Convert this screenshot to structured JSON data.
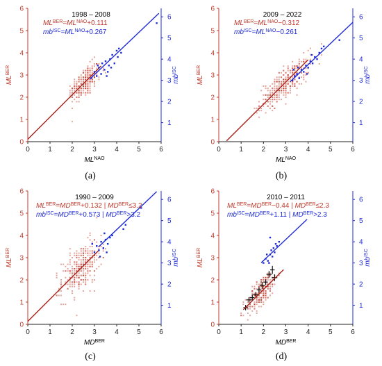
{
  "colors": {
    "ml": "#c0392b",
    "mb": "#1f2bd4",
    "axis": "#222222"
  },
  "chart_data": [
    {
      "panel": "(a)",
      "type": "scatter",
      "title": "1998 – 2008",
      "eq_red": {
        "lhs_base": "ML",
        "lhs_sup": "BER",
        "rhs_base": "=ML",
        "rhs_sup": "NAO",
        "tail": "+0.111"
      },
      "eq_blue": {
        "lhs_base": "mb",
        "lhs_sup": "ISC",
        "rhs_base": "=ML",
        "rhs_sup": "NAO",
        "tail": "+0.267"
      },
      "xlabel": {
        "base": "ML",
        "sup": "NAO"
      },
      "ylabel_left": {
        "base": "ML",
        "sup": "BER"
      },
      "ylabel_right": {
        "base": "mb",
        "sup": "ISC"
      },
      "xlim": [
        0,
        6
      ],
      "ylim_left": [
        0,
        6
      ],
      "ylim_right": [
        0.1,
        6.4
      ],
      "x_ticks": [
        "0",
        "1",
        "2",
        "3",
        "4",
        "5",
        "6"
      ],
      "left_ticks": [
        "0",
        "1",
        "2",
        "3",
        "4",
        "5",
        "6"
      ],
      "right_ticks": [
        "1",
        "2",
        "3",
        "4",
        "5",
        "6"
      ],
      "fit_red": {
        "slope": 1,
        "intercept": 0.111,
        "x": [
          0,
          3.3
        ]
      },
      "fit_blue": {
        "slope": 1,
        "intercept": 0.267,
        "x": [
          2.8,
          5.9
        ]
      },
      "red_cloud": {
        "cx": 2.55,
        "cy": 2.65,
        "sx": 0.35,
        "sy": 0.42,
        "rho": 0.6,
        "n": 260,
        "xmin": 1.9,
        "xmax": 3.6
      },
      "blue_points": [
        [
          2.85,
          3.1
        ],
        [
          3.0,
          3.4
        ],
        [
          3.1,
          3.2
        ],
        [
          3.2,
          3.6
        ],
        [
          3.3,
          3.3
        ],
        [
          3.35,
          3.8
        ],
        [
          3.45,
          3.5
        ],
        [
          3.5,
          3.9
        ],
        [
          3.6,
          3.4
        ],
        [
          3.65,
          3.7
        ],
        [
          3.7,
          4.0
        ],
        [
          3.75,
          3.6
        ],
        [
          3.8,
          4.2
        ],
        [
          3.9,
          3.8
        ],
        [
          4.0,
          4.4
        ],
        [
          4.05,
          4.1
        ],
        [
          4.1,
          4.5
        ],
        [
          4.2,
          4.3
        ],
        [
          3.55,
          3.2
        ],
        [
          3.15,
          3.7
        ],
        [
          5.8,
          5.7
        ]
      ]
    },
    {
      "panel": "(b)",
      "type": "scatter",
      "title": "2009 – 2022",
      "eq_red": {
        "lhs_base": "ML",
        "lhs_sup": "BER",
        "rhs_base": "=ML",
        "rhs_sup": "NAO",
        "tail": "−0.312"
      },
      "eq_blue": {
        "lhs_base": "mb",
        "lhs_sup": "ISC",
        "rhs_base": "=ML",
        "rhs_sup": "NAO",
        "tail": "−0.261"
      },
      "xlabel": {
        "base": "ML",
        "sup": "NAO"
      },
      "ylabel_left": {
        "base": "ML",
        "sup": "BER"
      },
      "ylabel_right": {
        "base": "mb",
        "sup": "ISC"
      },
      "xlim": [
        0,
        6
      ],
      "ylim_left": [
        0,
        6
      ],
      "ylim_right": [
        0.1,
        6.4
      ],
      "x_ticks": [
        "0",
        "1",
        "2",
        "3",
        "4",
        "5",
        "6"
      ],
      "left_ticks": [
        "0",
        "1",
        "2",
        "3",
        "4",
        "5",
        "6"
      ],
      "right_ticks": [
        "1",
        "2",
        "3",
        "4",
        "5",
        "6"
      ],
      "fit_red": {
        "slope": 1,
        "intercept": -0.312,
        "x": [
          0.35,
          4.0
        ]
      },
      "fit_blue": {
        "slope": 1,
        "intercept": -0.261,
        "x": [
          3.2,
          6.0
        ]
      },
      "red_cloud": {
        "cx": 2.95,
        "cy": 2.6,
        "sx": 0.55,
        "sy": 0.55,
        "rho": 0.8,
        "n": 340,
        "xmin": 1.6,
        "xmax": 4.6
      },
      "blue_points": [
        [
          3.3,
          3.0
        ],
        [
          3.4,
          3.2
        ],
        [
          3.5,
          3.3
        ],
        [
          3.6,
          3.1
        ],
        [
          3.7,
          3.5
        ],
        [
          3.8,
          3.4
        ],
        [
          3.9,
          3.7
        ],
        [
          4.0,
          3.6
        ],
        [
          4.1,
          3.9
        ],
        [
          4.2,
          3.8
        ],
        [
          4.3,
          4.1
        ],
        [
          4.4,
          4.0
        ],
        [
          4.5,
          4.3
        ],
        [
          4.6,
          4.5
        ],
        [
          3.55,
          3.6
        ],
        [
          3.95,
          3.3
        ],
        [
          4.15,
          4.2
        ],
        [
          4.7,
          4.6
        ],
        [
          3.35,
          3.5
        ],
        [
          5.4,
          4.9
        ]
      ]
    },
    {
      "panel": "(c)",
      "type": "scatter",
      "title": "1990 – 2009",
      "eq_red": {
        "lhs_base": "ML",
        "lhs_sup": "BER",
        "rhs_base": "=MD",
        "rhs_sup": "BER",
        "tail": "+0.132  |  ",
        "cond_base": "MD",
        "cond_sup": "BER",
        "cond_tail": "≤3.2"
      },
      "eq_blue": {
        "lhs_base": "mb",
        "lhs_sup": "ISC",
        "rhs_base": "=MD",
        "rhs_sup": "BER",
        "tail": "+0.573  |  ",
        "cond_base": "MD",
        "cond_sup": "BER",
        "cond_tail": ">3.2"
      },
      "xlabel": {
        "base": "MD",
        "sup": "BER"
      },
      "ylabel_left": {
        "base": "ML",
        "sup": "BER"
      },
      "ylabel_right": {
        "base": "mb",
        "sup": "ISC"
      },
      "xlim": [
        0,
        6
      ],
      "ylim_left": [
        0,
        6
      ],
      "ylim_right": [
        0.1,
        6.4
      ],
      "x_ticks": [
        "0",
        "1",
        "2",
        "3",
        "4",
        "5",
        "6"
      ],
      "left_ticks": [
        "0",
        "1",
        "2",
        "3",
        "4",
        "5",
        "6"
      ],
      "right_ticks": [
        "1",
        "2",
        "3",
        "4",
        "5",
        "6"
      ],
      "fit_red": {
        "slope": 1,
        "intercept": 0.132,
        "x": [
          0,
          3.2
        ]
      },
      "fit_blue": {
        "slope": 1,
        "intercept": 0.573,
        "x": [
          3.2,
          5.8
        ]
      },
      "red_cloud": {
        "cx": 2.4,
        "cy": 2.55,
        "sx": 0.45,
        "sy": 0.6,
        "rho": 0.55,
        "n": 320,
        "xmin": 1.3,
        "xmax": 3.6
      },
      "blue_points": [
        [
          3.0,
          3.5
        ],
        [
          3.1,
          3.8
        ],
        [
          3.2,
          3.6
        ],
        [
          3.3,
          4.0
        ],
        [
          3.4,
          3.7
        ],
        [
          3.5,
          4.1
        ],
        [
          3.6,
          3.9
        ],
        [
          3.7,
          4.2
        ],
        [
          3.8,
          4.3
        ],
        [
          2.9,
          3.9
        ],
        [
          3.25,
          3.3
        ],
        [
          3.55,
          3.5
        ],
        [
          4.3,
          4.6
        ],
        [
          4.4,
          4.8
        ],
        [
          5.1,
          5.6
        ],
        [
          3.45,
          4.4
        ]
      ]
    },
    {
      "panel": "(d)",
      "type": "scatter",
      "title": "2010 – 2011",
      "eq_red": {
        "lhs_base": "ML",
        "lhs_sup": "BER",
        "rhs_base": "=MD",
        "rhs_sup": "BER",
        "tail": "−0.44  |  ",
        "cond_base": "MD",
        "cond_sup": "BER",
        "cond_tail": "≤2.3"
      },
      "eq_blue": {
        "lhs_base": "mb",
        "lhs_sup": "ISC",
        "rhs_base": "=MD",
        "rhs_sup": "BER",
        "tail": "+1.11  |  ",
        "cond_base": "MD",
        "cond_sup": "BER",
        "cond_tail": ">2.3"
      },
      "xlabel": {
        "base": "MD",
        "sup": "BER"
      },
      "ylabel_left": {
        "base": "ML",
        "sup": "BER"
      },
      "ylabel_right": {
        "base": "mb",
        "sup": "ISC"
      },
      "xlim": [
        0,
        6
      ],
      "ylim_left": [
        0,
        6
      ],
      "ylim_right": [
        0.1,
        6.4
      ],
      "x_ticks": [
        "0",
        "1",
        "2",
        "3",
        "4",
        "5",
        "6"
      ],
      "left_ticks": [
        "0",
        "1",
        "2",
        "3",
        "4",
        "5",
        "6"
      ],
      "right_ticks": [
        "1",
        "2",
        "3",
        "4",
        "5",
        "6"
      ],
      "fit_red": {
        "slope": 1,
        "intercept": -0.44,
        "x": [
          1.1,
          2.9
        ]
      },
      "fit_blue": {
        "slope": 1,
        "intercept": 1.11,
        "x": [
          1.9,
          3.95
        ]
      },
      "red_cloud": {
        "cx": 1.9,
        "cy": 1.45,
        "sx": 0.35,
        "sy": 0.5,
        "rho": 0.75,
        "n": 230,
        "xmin": 1.0,
        "xmax": 2.9
      },
      "blue_points": [
        [
          2.0,
          3.0
        ],
        [
          2.1,
          3.2
        ],
        [
          2.2,
          3.1
        ],
        [
          2.3,
          3.4
        ],
        [
          2.35,
          3.6
        ],
        [
          2.4,
          3.3
        ],
        [
          2.45,
          3.7
        ],
        [
          2.5,
          3.5
        ],
        [
          2.55,
          3.9
        ],
        [
          2.6,
          3.8
        ],
        [
          2.25,
          3.0
        ],
        [
          2.15,
          3.4
        ],
        [
          2.7,
          4.0
        ],
        [
          2.3,
          4.2
        ]
      ],
      "error_points": [
        [
          1.2,
          0.75,
          0.1,
          0.12
        ],
        [
          1.35,
          1.1,
          0.12,
          0.12
        ],
        [
          1.5,
          1.2,
          0.1,
          0.15
        ],
        [
          1.65,
          1.35,
          0.12,
          0.1
        ],
        [
          1.8,
          1.55,
          0.1,
          0.12
        ],
        [
          1.95,
          1.75,
          0.12,
          0.15
        ],
        [
          2.1,
          1.9,
          0.1,
          0.12
        ],
        [
          2.25,
          2.25,
          0.12,
          0.15
        ],
        [
          2.4,
          2.45,
          0.1,
          0.18
        ],
        [
          2.5,
          2.1,
          0.12,
          0.15
        ]
      ]
    }
  ]
}
